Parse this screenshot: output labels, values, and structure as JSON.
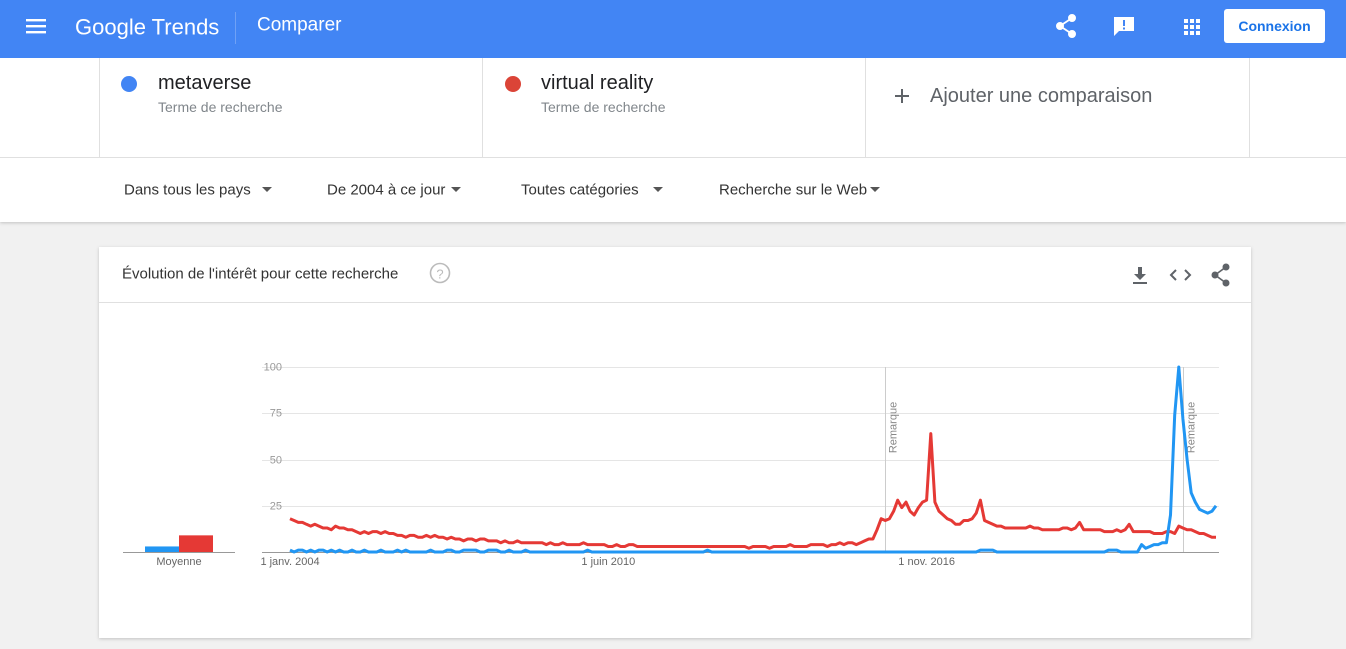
{
  "header": {
    "brand": "Google Trends",
    "page": "Comparer",
    "signin": "Connexion"
  },
  "terms_subtitle": [
    "Terme de recherche",
    "Terme de recherche"
  ],
  "add_comparison": "Ajouter une comparaison",
  "filters": [
    "Dans tous les pays",
    "De 2004 à ce jour",
    "Toutes catégories",
    "Recherche sur le Web"
  ],
  "card_title": "Évolution de l'intérêt pour cette recherche",
  "chart_data": {
    "type": "line",
    "categories": [
      "1 janv. 2004",
      null,
      null,
      null,
      null,
      null,
      null,
      null,
      null,
      null,
      null,
      null,
      null,
      null,
      null,
      null,
      null,
      null,
      null,
      null,
      null,
      null,
      null,
      null,
      null,
      null,
      null,
      null,
      null,
      null,
      null,
      null,
      null,
      null,
      null,
      null,
      null,
      null,
      null,
      null,
      null,
      null,
      null,
      null,
      null,
      null,
      null,
      null,
      null,
      null,
      null,
      null,
      null,
      null,
      null,
      null,
      null,
      null,
      null,
      null,
      null,
      null,
      null,
      null,
      null,
      null,
      null,
      null,
      null,
      null,
      null,
      null,
      null,
      null,
      null,
      null,
      null,
      "1 juin 2010",
      null,
      null,
      null,
      null,
      null,
      null,
      null,
      null,
      null,
      null,
      null,
      null,
      null,
      null,
      null,
      null,
      null,
      null,
      null,
      null,
      null,
      null,
      null,
      null,
      null,
      null,
      null,
      null,
      null,
      null,
      null,
      null,
      null,
      null,
      null,
      null,
      null,
      null,
      null,
      null,
      null,
      null,
      null,
      null,
      null,
      null,
      null,
      null,
      null,
      null,
      null,
      null,
      null,
      null,
      null,
      null,
      null,
      null,
      null,
      null,
      null,
      null,
      null,
      null,
      null,
      null,
      null,
      null,
      null,
      null,
      null,
      null,
      null,
      null,
      null,
      null,
      "1 nov. 2016",
      null,
      null,
      null,
      null,
      null,
      null,
      null,
      null,
      null,
      null,
      null,
      null,
      null,
      null,
      null,
      null,
      null,
      null,
      null,
      null,
      null,
      null,
      null,
      null,
      null,
      null,
      null,
      null,
      null,
      null,
      null,
      null,
      null,
      null,
      null,
      null,
      null,
      null,
      null,
      null,
      null,
      null,
      null,
      null,
      null,
      null,
      null,
      null,
      null,
      null,
      null,
      null,
      null,
      null,
      null,
      null,
      null,
      null,
      null,
      null,
      null,
      null,
      null,
      null,
      null,
      null,
      null,
      null,
      null,
      null
    ],
    "series": [
      {
        "name": "metaverse",
        "color": "#4285f4",
        "line_color": "#2196f3",
        "values": [
          1,
          0,
          1,
          1,
          0,
          1,
          0,
          1,
          1,
          0,
          1,
          0,
          1,
          0,
          0,
          1,
          0,
          0,
          1,
          0,
          0,
          0,
          1,
          0,
          0,
          0,
          1,
          0,
          1,
          0,
          0,
          0,
          0,
          0,
          1,
          0,
          0,
          0,
          1,
          1,
          0,
          0,
          1,
          1,
          1,
          1,
          0,
          0,
          1,
          1,
          1,
          0,
          0,
          1,
          0,
          0,
          0,
          1,
          0,
          0,
          0,
          0,
          0,
          0,
          0,
          0,
          0,
          0,
          0,
          0,
          0,
          0,
          1,
          0,
          0,
          0,
          0,
          0,
          0,
          0,
          0,
          0,
          0,
          0,
          0,
          0,
          0,
          0,
          0,
          0,
          0,
          0,
          0,
          0,
          0,
          0,
          0,
          0,
          0,
          0,
          0,
          1,
          0,
          0,
          0,
          0,
          0,
          0,
          0,
          0,
          0,
          0,
          0,
          0,
          0,
          0,
          0,
          0,
          0,
          0,
          0,
          0,
          0,
          0,
          0,
          0,
          0,
          0,
          0,
          0,
          0,
          0,
          0,
          0,
          0,
          0,
          0,
          0,
          0,
          0,
          0,
          0,
          0,
          0,
          0,
          0,
          0,
          0,
          0,
          0,
          0,
          0,
          0,
          0,
          0,
          0,
          0,
          0,
          0,
          0,
          0,
          0,
          0,
          0,
          0,
          0,
          0,
          1,
          1,
          1,
          1,
          0,
          0,
          0,
          0,
          0,
          0,
          0,
          0,
          0,
          0,
          0,
          0,
          0,
          0,
          0,
          0,
          0,
          0,
          0,
          0,
          0,
          0,
          0,
          0,
          0,
          0,
          0,
          1,
          1,
          1,
          0,
          0,
          0,
          0,
          0,
          4,
          2,
          3,
          4,
          4,
          5,
          5,
          20,
          74,
          100,
          72,
          50,
          32,
          27,
          23,
          22,
          21,
          22,
          25
        ]
      },
      {
        "name": "virtual reality",
        "color": "#db4437",
        "line_color": "#e53935",
        "values": [
          18,
          17,
          16,
          16,
          15,
          14,
          15,
          14,
          13,
          13,
          12,
          14,
          13,
          13,
          12,
          12,
          11,
          10,
          11,
          10,
          11,
          11,
          10,
          11,
          10,
          10,
          9,
          9,
          8,
          9,
          9,
          8,
          8,
          9,
          8,
          9,
          8,
          8,
          7,
          8,
          7,
          7,
          6,
          7,
          7,
          6,
          7,
          7,
          6,
          6,
          6,
          5,
          6,
          5,
          5,
          6,
          5,
          5,
          5,
          5,
          5,
          5,
          4,
          5,
          4,
          4,
          5,
          4,
          4,
          4,
          4,
          5,
          4,
          4,
          4,
          4,
          4,
          3,
          3,
          4,
          3,
          3,
          4,
          4,
          3,
          3,
          3,
          3,
          3,
          3,
          3,
          3,
          3,
          3,
          3,
          3,
          3,
          3,
          3,
          3,
          3,
          3,
          3,
          3,
          3,
          3,
          3,
          3,
          3,
          3,
          3,
          2,
          3,
          3,
          3,
          3,
          2,
          3,
          3,
          3,
          3,
          4,
          3,
          3,
          3,
          3,
          4,
          4,
          4,
          4,
          3,
          4,
          4,
          5,
          4,
          5,
          5,
          4,
          5,
          6,
          7,
          7,
          12,
          18,
          17,
          18,
          22,
          28,
          24,
          27,
          22,
          20,
          24,
          27,
          28,
          64,
          27,
          22,
          20,
          18,
          17,
          15,
          15,
          17,
          17,
          18,
          21,
          28,
          17,
          16,
          15,
          14,
          14,
          13,
          13,
          13,
          13,
          13,
          13,
          14,
          13,
          13,
          12,
          12,
          12,
          12,
          12,
          13,
          13,
          12,
          13,
          16,
          12,
          12,
          12,
          12,
          12,
          11,
          11,
          11,
          12,
          11,
          12,
          15,
          11,
          11,
          11,
          11,
          11,
          10,
          10,
          10,
          11,
          11,
          10,
          14,
          13,
          12,
          12,
          11,
          10,
          10,
          9,
          8,
          8
        ]
      }
    ],
    "ylim": [
      0,
      100
    ],
    "yticks": [
      25,
      50,
      75,
      100
    ],
    "grid": true,
    "averages": {
      "label": "Moyenne",
      "values": [
        3,
        9
      ]
    },
    "annotations": [
      "Remarque",
      "Remarque"
    ]
  }
}
